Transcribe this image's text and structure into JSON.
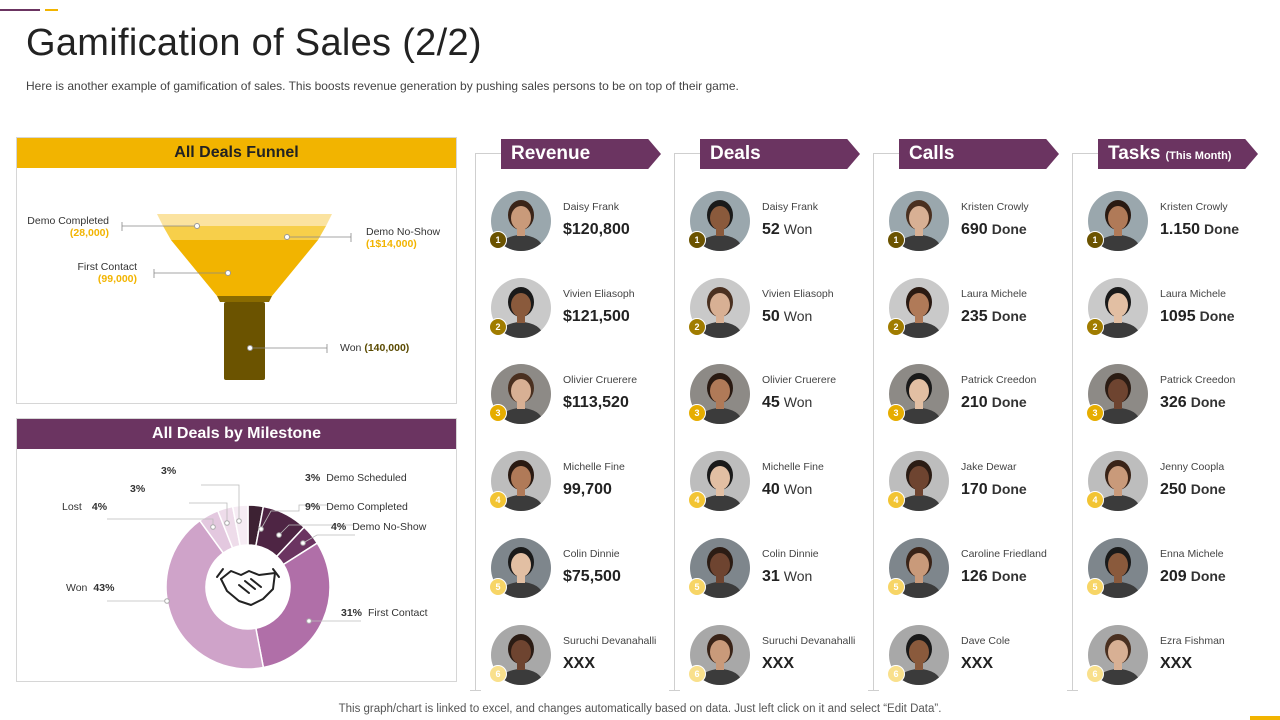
{
  "title": "Gamification of Sales (2/2)",
  "subtitle": "Here is another example of gamification of sales. This boosts revenue  generation  by pushing sales persons to be on top of their game.",
  "colors": {
    "accent_purple": "#6b3461",
    "accent_yellow": "#f2b400"
  },
  "funnel": {
    "title": "All Deals Funnel",
    "labels": [
      {
        "name": "Demo Completed",
        "value": "(28,000)"
      },
      {
        "name": "Demo No-Show",
        "value": "(1$14,000)"
      },
      {
        "name": "First Contact",
        "value": "(99,000)"
      },
      {
        "name": "Won",
        "value": "(140,000)"
      }
    ]
  },
  "milestone": {
    "title": "All Deals by Milestone",
    "center_icon": "handshake-icon",
    "slices": [
      {
        "label": "Demo Scheduled",
        "pct": "3%",
        "value": 3,
        "color": "#3d2233"
      },
      {
        "label": "Demo Completed",
        "pct": "9%",
        "value": 9,
        "color": "#4e2544"
      },
      {
        "label": "Demo No-Show",
        "pct": "4%",
        "value": 4,
        "color": "#6b3461"
      },
      {
        "label": "First Contact",
        "pct": "31%",
        "value": 31,
        "color": "#b06fa8"
      },
      {
        "label": "Won",
        "pct": "43%",
        "value": 43,
        "color": "#cfa3c9"
      },
      {
        "label": "Lost",
        "pct": "4%",
        "value": 4,
        "color": "#e3c8df"
      },
      {
        "label": "",
        "pct": "3%",
        "value": 3,
        "color": "#eedcea"
      },
      {
        "label": "",
        "pct": "3%",
        "value": 3,
        "color": "#f6ecf4"
      }
    ]
  },
  "leaderboards": [
    {
      "title": "Revenue",
      "title_small": "",
      "entries": [
        {
          "rank": "1",
          "name": "Daisy Frank",
          "value": "$120,800",
          "unit": ""
        },
        {
          "rank": "2",
          "name": "Vivien Eliasoph",
          "value": "$121,500",
          "unit": ""
        },
        {
          "rank": "3",
          "name": "Olivier Cruerere",
          "value": "$113,520",
          "unit": ""
        },
        {
          "rank": "4",
          "name": "Michelle Fine",
          "value": "99,700",
          "unit": ""
        },
        {
          "rank": "5",
          "name": "Colin Dinnie",
          "value": "$75,500",
          "unit": ""
        },
        {
          "rank": "6",
          "name": "Suruchi Devanahalli",
          "value": "XXX",
          "unit": ""
        }
      ]
    },
    {
      "title": "Deals",
      "title_small": "",
      "entries": [
        {
          "rank": "1",
          "name": "Daisy Frank",
          "value": "52",
          "unit": "Won"
        },
        {
          "rank": "2",
          "name": "Vivien Eliasoph",
          "value": "50",
          "unit": "Won"
        },
        {
          "rank": "3",
          "name": "Olivier Cruerere",
          "value": "45",
          "unit": "Won"
        },
        {
          "rank": "4",
          "name": "Michelle Fine",
          "value": "40",
          "unit": "Won"
        },
        {
          "rank": "5",
          "name": "Colin Dinnie",
          "value": "31",
          "unit": "Won"
        },
        {
          "rank": "6",
          "name": "Suruchi Devanahalli",
          "value": "XXX",
          "unit": ""
        }
      ]
    },
    {
      "title": "Calls",
      "title_small": "",
      "entries": [
        {
          "rank": "1",
          "name": "Kristen Crowly",
          "value": "690",
          "unit": "Done"
        },
        {
          "rank": "2",
          "name": "Laura Michele",
          "value": "235",
          "unit": "Done"
        },
        {
          "rank": "3",
          "name": "Patrick Creedon",
          "value": "210",
          "unit": "Done"
        },
        {
          "rank": "4",
          "name": "Jake Dewar",
          "value": "170",
          "unit": "Done"
        },
        {
          "rank": "5",
          "name": "Caroline Friedland",
          "value": "126",
          "unit": "Done"
        },
        {
          "rank": "6",
          "name": "Dave Cole",
          "value": "XXX",
          "unit": ""
        }
      ]
    },
    {
      "title": "Tasks",
      "title_small": "(This Month)",
      "entries": [
        {
          "rank": "1",
          "name": "Kristen Crowly",
          "value": "1.150",
          "unit": "Done"
        },
        {
          "rank": "2",
          "name": "Laura Michele",
          "value": "1095",
          "unit": "Done"
        },
        {
          "rank": "3",
          "name": "Patrick Creedon",
          "value": "326",
          "unit": "Done"
        },
        {
          "rank": "4",
          "name": "Jenny Coopla",
          "value": "250",
          "unit": "Done"
        },
        {
          "rank": "5",
          "name": "Enna Michele",
          "value": "209",
          "unit": "Done"
        },
        {
          "rank": "6",
          "name": "Ezra Fishman",
          "value": "XXX",
          "unit": ""
        }
      ]
    }
  ],
  "footer": "This graph/chart is linked to excel,  and changes automatically based on data. Just left click on it and select “Edit Data”."
}
